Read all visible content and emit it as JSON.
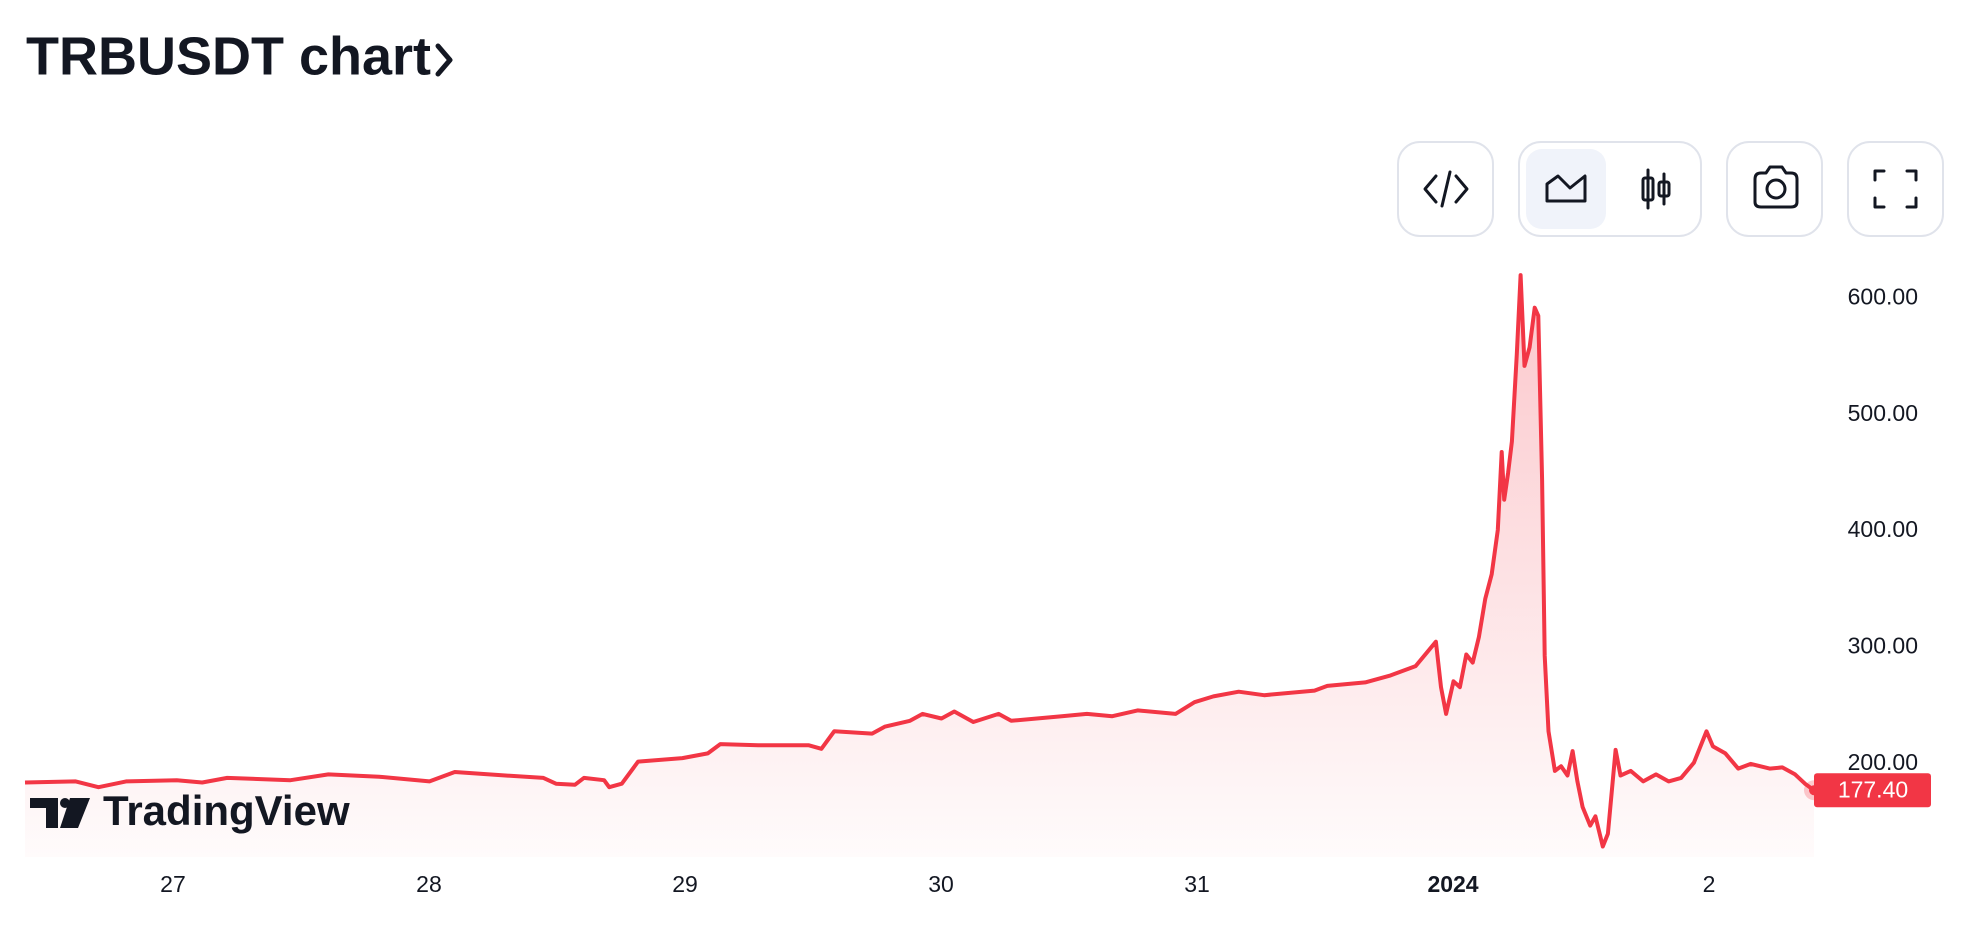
{
  "chart_data": {
    "type": "line",
    "title": "TRBUSDT chart",
    "watermark": "TradingView",
    "x": [
      -0.578,
      -0.38,
      -0.291,
      -0.183,
      0.015,
      0.114,
      0.212,
      0.459,
      0.607,
      0.805,
      1.002,
      1.101,
      1.299,
      1.447,
      1.496,
      1.57,
      1.605,
      1.684,
      1.704,
      1.753,
      1.817,
      1.99,
      2.089,
      2.138,
      2.286,
      2.484,
      2.533,
      2.583,
      2.731,
      2.78,
      2.879,
      2.928,
      3.002,
      3.052,
      3.126,
      3.225,
      3.274,
      3.472,
      3.57,
      3.669,
      3.768,
      3.916,
      3.99,
      4.064,
      4.163,
      4.262,
      4.459,
      4.509,
      4.657,
      4.756,
      4.854,
      4.933,
      4.953,
      4.973,
      5.002,
      5.027,
      5.052,
      5.077,
      5.101,
      5.126,
      5.151,
      5.175,
      5.19,
      5.2,
      5.215,
      5.23,
      5.249,
      5.264,
      5.279,
      5.299,
      5.319,
      5.333,
      5.348,
      5.358,
      5.373,
      5.398,
      5.422,
      5.447,
      5.467,
      5.486,
      5.506,
      5.536,
      5.556,
      5.585,
      5.605,
      5.635,
      5.654,
      5.694,
      5.743,
      5.793,
      5.842,
      5.891,
      5.941,
      5.99,
      6.015,
      6.064,
      6.114,
      6.163,
      6.237,
      6.286,
      6.336,
      6.375,
      6.41
    ],
    "series": [
      {
        "color": "#f23645",
        "values": [
          184,
          185,
          180,
          185,
          186,
          184,
          188,
          186,
          191,
          189,
          185,
          193,
          190,
          188,
          183,
          182,
          188,
          186,
          180,
          183,
          202,
          205,
          209,
          217,
          216,
          216,
          213,
          228,
          226,
          232,
          237,
          243,
          239,
          245,
          236,
          243,
          237,
          241,
          243,
          241,
          246,
          243,
          253,
          258,
          262,
          259,
          263,
          267,
          270,
          276,
          284,
          305,
          266,
          243,
          271,
          266,
          294,
          287,
          309,
          342,
          363,
          401,
          468,
          427,
          450,
          477,
          552,
          620,
          542,
          558,
          592,
          585,
          444,
          293,
          228,
          194,
          198,
          190,
          211,
          185,
          163,
          147,
          155,
          129,
          140,
          212,
          190,
          194,
          185,
          191,
          185,
          188,
          201,
          228,
          215,
          209,
          196,
          200,
          196,
          197,
          191,
          183,
          177.4
        ]
      }
    ],
    "last_price": {
      "value": 177.4,
      "label": "177.40"
    },
    "xlim": [
      -0.578,
      6.41
    ],
    "xticks": [
      {
        "value": 0,
        "label": "27"
      },
      {
        "value": 1,
        "label": "28"
      },
      {
        "value": 2,
        "label": "29"
      },
      {
        "value": 3,
        "label": "30"
      },
      {
        "value": 4,
        "label": "31"
      },
      {
        "value": 5,
        "label": "2024"
      },
      {
        "value": 6,
        "label": "2"
      }
    ],
    "ylim": [
      120,
      645
    ],
    "yticks": [
      {
        "value": 200,
        "label": "200.00"
      },
      {
        "value": 300,
        "label": "300.00"
      },
      {
        "value": 400,
        "label": "400.00"
      },
      {
        "value": 500,
        "label": "500.00"
      },
      {
        "value": 600,
        "label": "600.00"
      }
    ],
    "grid": false
  }
}
